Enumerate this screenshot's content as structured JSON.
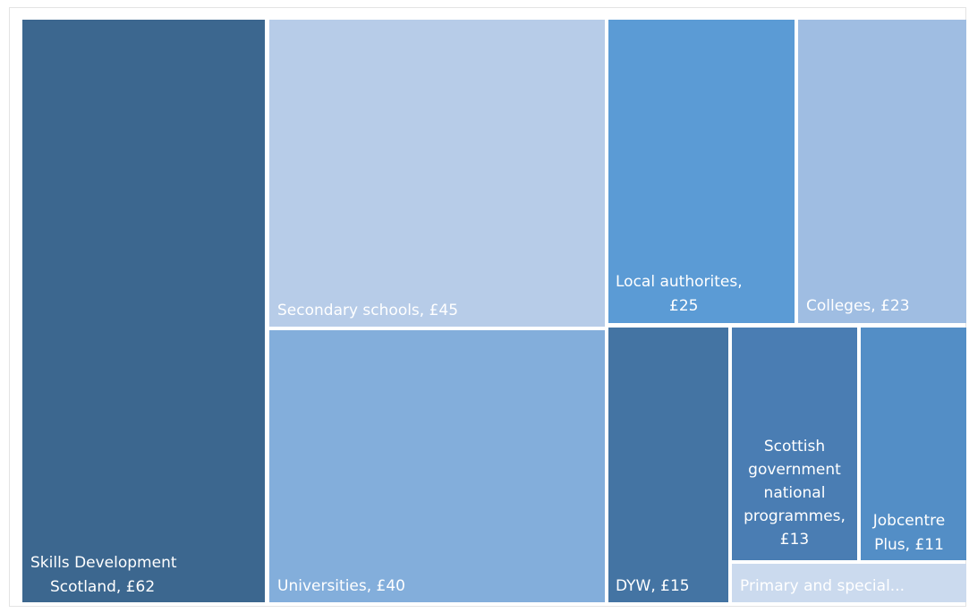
{
  "chart_data": {
    "type": "treemap",
    "unit_prefix": "£",
    "items": [
      {
        "label": "Skills Development Scotland",
        "value": 62,
        "display": [
          "Skills Development",
          "Scotland,  £62"
        ],
        "color": "#3c678f",
        "text_color": "#ffffff"
      },
      {
        "label": "Secondary schools",
        "value": 45,
        "display": [
          "Secondary schools,  £45"
        ],
        "color": "#b7cce8",
        "text_color": "#ffffff"
      },
      {
        "label": "Universities",
        "value": 40,
        "display": [
          "Universities,  £40"
        ],
        "color": "#83aedb",
        "text_color": "#ffffff"
      },
      {
        "label": "Local authorites",
        "value": 25,
        "display": [
          "Local authorites,",
          "£25"
        ],
        "color": "#5b9bd5",
        "text_color": "#ffffff"
      },
      {
        "label": "Colleges",
        "value": 23,
        "display": [
          "Colleges,  £23"
        ],
        "color": "#9fbde2",
        "text_color": "#ffffff"
      },
      {
        "label": "DYW",
        "value": 15,
        "display": [
          "DYW,  £15"
        ],
        "color": "#4474a3",
        "text_color": "#ffffff"
      },
      {
        "label": "Scottish government national programmes",
        "value": 13,
        "display": [
          "Scottish",
          "government",
          "national",
          "programmes,",
          "£13"
        ],
        "color": "#4a7db3",
        "text_color": "#ffffff"
      },
      {
        "label": "Jobcentre Plus",
        "value": 11,
        "display": [
          "Jobcentre",
          "Plus,  £11"
        ],
        "color": "#538ec6",
        "text_color": "#ffffff"
      },
      {
        "label": "Primary and special...",
        "value": 4,
        "display": [
          "Primary and special..."
        ],
        "color": "#cbdaee",
        "text_color": "#ffffff"
      }
    ]
  }
}
